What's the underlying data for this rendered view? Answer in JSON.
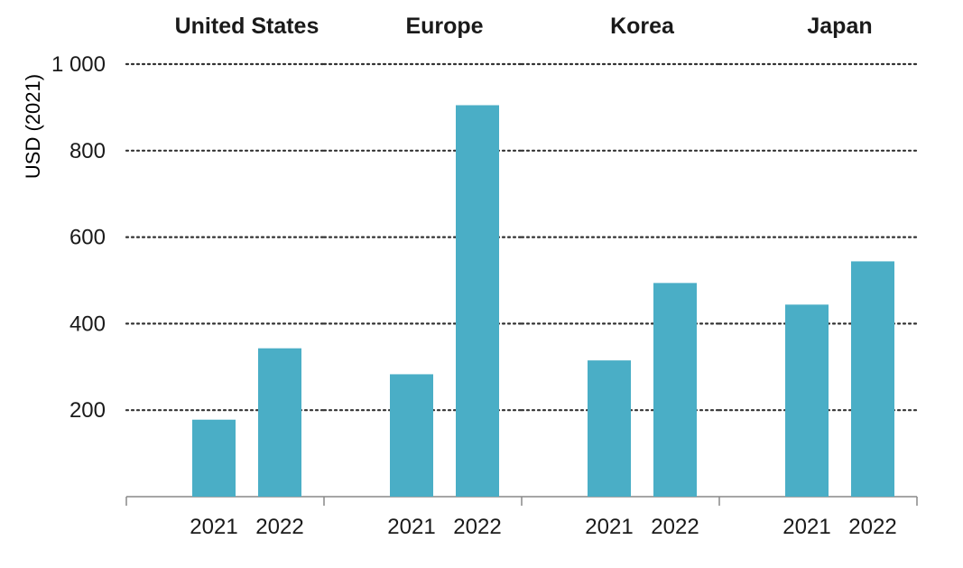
{
  "chart_data": {
    "type": "bar",
    "ylabel": "USD (2021)",
    "ylim": [
      0,
      1000
    ],
    "yticks": [
      {
        "value": 200,
        "label": "200"
      },
      {
        "value": 400,
        "label": "400"
      },
      {
        "value": 600,
        "label": "600"
      },
      {
        "value": 800,
        "label": "800"
      },
      {
        "value": 1000,
        "label": "1 000"
      }
    ],
    "grid": "dotted-horizontal",
    "bar_color": "#4aaec6",
    "text_color": "#1a1a1a",
    "axis_color": "#888888",
    "grid_color": "#333333",
    "panels": [
      {
        "title": "United States",
        "categories": [
          "2021",
          "2022"
        ],
        "values": [
          178,
          343
        ]
      },
      {
        "title": "Europe",
        "categories": [
          "2021",
          "2022"
        ],
        "values": [
          283,
          905
        ]
      },
      {
        "title": "Korea",
        "categories": [
          "2021",
          "2022"
        ],
        "values": [
          315,
          494
        ]
      },
      {
        "title": "Japan",
        "categories": [
          "2021",
          "2022"
        ],
        "values": [
          444,
          544
        ]
      }
    ]
  }
}
